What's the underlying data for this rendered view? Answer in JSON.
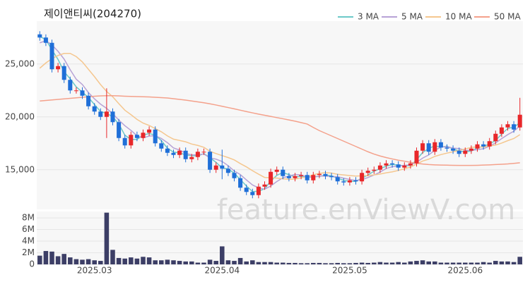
{
  "chart_data": {
    "type": "candlestick",
    "title": "제이앤티씨(204270)",
    "watermark": "feature.enViewV.com",
    "categories": [
      null,
      null,
      null,
      null,
      null,
      null,
      null,
      null,
      null,
      "2025.03",
      null,
      null,
      null,
      null,
      null,
      null,
      null,
      null,
      null,
      null,
      null,
      null,
      null,
      null,
      null,
      null,
      null,
      null,
      null,
      null,
      "2025.04",
      null,
      null,
      null,
      null,
      null,
      null,
      null,
      null,
      null,
      null,
      null,
      null,
      null,
      null,
      null,
      null,
      null,
      null,
      null,
      null,
      "2025.05",
      null,
      null,
      null,
      null,
      null,
      null,
      null,
      null,
      null,
      null,
      null,
      null,
      null,
      null,
      null,
      null,
      null,
      null,
      "2025.06",
      null,
      null,
      null,
      null,
      null,
      null,
      null,
      null,
      null
    ],
    "open": [
      27800,
      27500,
      27000,
      24500,
      24800,
      23500,
      22500,
      22500,
      22000,
      21000,
      20500,
      20000,
      20500,
      19500,
      18000,
      17300,
      18300,
      18000,
      18500,
      18800,
      17500,
      17000,
      16600,
      16400,
      16800,
      16000,
      16200,
      16700,
      16700,
      15000,
      15400,
      15100,
      14700,
      14200,
      13300,
      12900,
      12600,
      13400,
      13600,
      14800,
      15000,
      14400,
      14200,
      14400,
      14500,
      14000,
      14500,
      14600,
      14400,
      14300,
      13900,
      13800,
      14000,
      13900,
      14700,
      14900,
      15000,
      15400,
      15600,
      15500,
      15200,
      15400,
      15600,
      16800,
      17500,
      16700,
      17600,
      17100,
      17000,
      16800,
      16500,
      16800,
      17000,
      17400,
      17200,
      17700,
      18400,
      19000,
      19300,
      19000
    ],
    "high": [
      28100,
      27800,
      27300,
      25100,
      25100,
      23800,
      22800,
      22800,
      22300,
      21300,
      20800,
      22700,
      20800,
      19800,
      18300,
      18600,
      18600,
      18800,
      19100,
      19100,
      17800,
      17300,
      16900,
      17100,
      17100,
      16500,
      17000,
      17000,
      17000,
      15700,
      16900,
      15400,
      15000,
      14500,
      13600,
      13200,
      13700,
      13900,
      15100,
      15300,
      15300,
      14700,
      14700,
      14800,
      14800,
      14800,
      14900,
      14900,
      14700,
      14600,
      14200,
      14300,
      14300,
      15000,
      15200,
      15300,
      15700,
      15900,
      15900,
      15800,
      15700,
      15900,
      17100,
      17800,
      17800,
      17900,
      17900,
      17400,
      17300,
      17100,
      17100,
      17300,
      17700,
      17700,
      18000,
      18700,
      19300,
      19600,
      19600,
      21800
    ],
    "low": [
      27200,
      26700,
      24200,
      24200,
      23200,
      22200,
      22200,
      21700,
      20700,
      20200,
      19700,
      18000,
      19200,
      17700,
      17000,
      17000,
      17700,
      17700,
      18200,
      17200,
      16700,
      16300,
      16100,
      16100,
      15700,
      15700,
      15900,
      16400,
      14700,
      14700,
      14100,
      14400,
      13900,
      13000,
      12600,
      12300,
      12300,
      13100,
      13300,
      14500,
      14100,
      13900,
      13900,
      14100,
      13700,
      13700,
      14200,
      14100,
      14000,
      13600,
      13500,
      13500,
      13600,
      13600,
      14400,
      14600,
      14700,
      15100,
      15200,
      14900,
      14900,
      15100,
      15300,
      16500,
      16400,
      16400,
      16800,
      16700,
      16500,
      16200,
      16200,
      16500,
      16700,
      16900,
      16900,
      17400,
      18100,
      18700,
      18500,
      18700
    ],
    "close": [
      27500,
      27000,
      24500,
      24800,
      23500,
      22500,
      22500,
      22000,
      21000,
      20500,
      20000,
      20500,
      19500,
      18000,
      17300,
      18300,
      18000,
      18500,
      18800,
      17500,
      17000,
      16600,
      16400,
      16800,
      16000,
      16200,
      16700,
      16700,
      15000,
      15400,
      15100,
      14700,
      14200,
      13300,
      12900,
      12600,
      13400,
      13600,
      14800,
      15000,
      14400,
      14200,
      14400,
      14500,
      14000,
      14500,
      14600,
      14400,
      14300,
      13900,
      13800,
      14000,
      13900,
      14700,
      14900,
      15000,
      15400,
      15600,
      15500,
      15200,
      15400,
      15600,
      16800,
      17500,
      16700,
      17600,
      17100,
      17000,
      16800,
      16500,
      16800,
      17000,
      17400,
      17200,
      17700,
      18400,
      19000,
      19300,
      18800,
      20200
    ],
    "up_color": "#e8272a",
    "down_color": "#1f6fd8",
    "ylim": [
      11250,
      29050
    ],
    "yticks": [
      {
        "value": 15000,
        "label": "15,000"
      },
      {
        "value": 20000,
        "label": "20,000"
      },
      {
        "value": 25000,
        "label": "25,000"
      }
    ],
    "grid": true,
    "legend": "top-right",
    "series": [
      {
        "name": "3 MA",
        "color": "#6cc9c8",
        "values": [
          27600,
          27300,
          26333,
          25433,
          24267,
          23600,
          22833,
          22333,
          21833,
          21167,
          20500,
          20333,
          20000,
          19333,
          18267,
          17867,
          17867,
          18267,
          18433,
          18267,
          17767,
          17033,
          16667,
          16600,
          16400,
          16333,
          16300,
          16533,
          16133,
          15700,
          15167,
          15067,
          14667,
          14067,
          13467,
          12933,
          12967,
          13200,
          13933,
          14467,
          14733,
          14533,
          14333,
          14367,
          14300,
          14333,
          14367,
          14500,
          14433,
          14200,
          14000,
          13900,
          13900,
          14200,
          14500,
          14867,
          15100,
          15333,
          15500,
          15433,
          15367,
          15400,
          15933,
          16633,
          17000,
          17267,
          17133,
          17233,
          16967,
          16767,
          16700,
          16767,
          17067,
          17200,
          17433,
          17767,
          18367,
          18900,
          19033,
          19433
        ]
      },
      {
        "name": "5 MA",
        "color": "#b7a2d6",
        "values": [
          27000,
          27200,
          26800,
          26200,
          25460,
          24460,
          23560,
          23060,
          22300,
          21700,
          21200,
          20800,
          20300,
          19700,
          19160,
          18720,
          18220,
          18020,
          18180,
          18220,
          17960,
          17560,
          17060,
          16860,
          16560,
          16400,
          16420,
          16480,
          16120,
          16000,
          15780,
          15380,
          14880,
          14540,
          14040,
          13560,
          13280,
          13160,
          13460,
          13880,
          14240,
          14400,
          14560,
          14500,
          14300,
          14320,
          14400,
          14400,
          14360,
          14340,
          14200,
          14080,
          13980,
          14060,
          14260,
          14500,
          14780,
          15120,
          15280,
          15340,
          15420,
          15460,
          15700,
          16100,
          16400,
          16840,
          17140,
          17180,
          17040,
          17000,
          16840,
          16820,
          16900,
          16980,
          17220,
          17540,
          17940,
          18320,
          18640,
          19140
        ]
      },
      {
        "name": "10 MA",
        "color": "#f5c78f",
        "values": [
          24600,
          25100,
          25500,
          25800,
          26000,
          26000,
          25700,
          25200,
          24500,
          23800,
          23050,
          22400,
          21900,
          21250,
          20630,
          20210,
          19760,
          19410,
          19190,
          18890,
          18590,
          18200,
          17890,
          17770,
          17640,
          17430,
          17300,
          17120,
          16740,
          16530,
          16340,
          16150,
          15930,
          15580,
          15270,
          14910,
          14580,
          14270,
          14250,
          14210,
          14140,
          14090,
          14110,
          14230,
          14340,
          14530,
          14650,
          14730,
          14680,
          14570,
          14510,
          14450,
          14400,
          14420,
          14460,
          14510,
          14590,
          14710,
          14800,
          14930,
          15090,
          15250,
          15540,
          15820,
          16000,
          16260,
          16430,
          16570,
          16700,
          16830,
          16970,
          17110,
          17170,
          17140,
          17240,
          17330,
          17520,
          17750,
          17950,
          18320
        ]
      },
      {
        "name": "50 MA",
        "color": "#f4a18b",
        "values": [
          21500,
          21550,
          21600,
          21650,
          21700,
          21750,
          21800,
          21850,
          21900,
          21950,
          21980,
          22000,
          22000,
          21980,
          21950,
          21930,
          21920,
          21900,
          21880,
          21850,
          21820,
          21780,
          21720,
          21650,
          21580,
          21500,
          21420,
          21330,
          21230,
          21120,
          21000,
          20880,
          20760,
          20630,
          20500,
          20380,
          20260,
          20150,
          20040,
          19930,
          19820,
          19710,
          19590,
          19460,
          19320,
          19000,
          18700,
          18450,
          18200,
          17950,
          17700,
          17450,
          17200,
          16950,
          16700,
          16480,
          16300,
          16150,
          16020,
          15900,
          15810,
          15700,
          15610,
          15540,
          15490,
          15460,
          15440,
          15430,
          15420,
          15410,
          15410,
          15410,
          15420,
          15440,
          15460,
          15490,
          15520,
          15550,
          15600,
          15660
        ]
      }
    ],
    "volume": {
      "color": "#3c3e66",
      "ylim": [
        0,
        9100000
      ],
      "yticks": [
        0,
        {
          "value": 2000000,
          "label": "2M"
        },
        {
          "value": 4000000,
          "label": "4M"
        },
        {
          "value": 6000000,
          "label": "6M"
        },
        {
          "value": 8000000,
          "label": "8M"
        }
      ],
      "values": [
        1500000,
        2300000,
        2200000,
        1400000,
        1800000,
        1200000,
        900000,
        800000,
        900000,
        700000,
        600000,
        8900000,
        2500000,
        1100000,
        1000000,
        1200000,
        1000000,
        1300000,
        1200000,
        700000,
        700000,
        800000,
        700000,
        600000,
        500000,
        500000,
        300000,
        300000,
        800000,
        600000,
        3100000,
        700000,
        600000,
        1100000,
        500000,
        700000,
        400000,
        400000,
        400000,
        300000,
        300000,
        250000,
        250000,
        200000,
        200000,
        250000,
        250000,
        200000,
        200000,
        250000,
        200000,
        200000,
        250000,
        300000,
        250000,
        300000,
        400000,
        300000,
        300000,
        400000,
        300000,
        500000,
        600000,
        700000,
        500000,
        500000,
        300000,
        300000,
        300000,
        300000,
        300000,
        300000,
        300000,
        400000,
        300000,
        600000,
        500000,
        500000,
        400000,
        1300000
      ]
    }
  }
}
